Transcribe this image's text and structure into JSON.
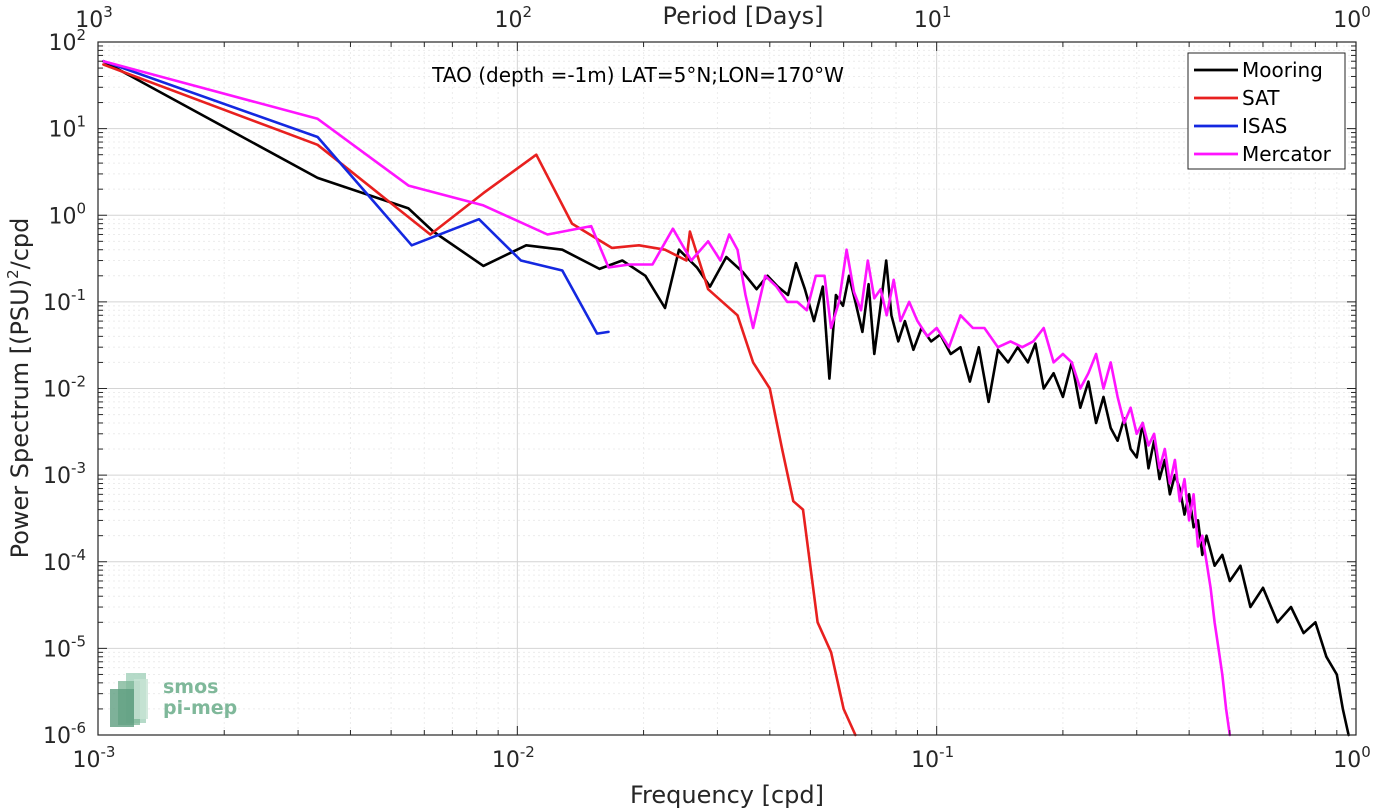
{
  "chart_data": {
    "type": "line",
    "title": "TAO (depth =-1m) LAT=5°N;LON=170°W",
    "xlabel": "Frequency [cpd]",
    "ylabel": "Power Spectrum [(PSU)",
    "ylabel_sup": "2",
    "ylabel_suffix": "/cpd",
    "top_xlabel": "Period [Days]",
    "xscale": "log",
    "yscale": "log",
    "xlim": [
      0.001,
      1
    ],
    "ylim": [
      1e-06,
      100
    ],
    "grid": true,
    "legend_position": "top-right",
    "x_tick_labels": [
      {
        "base": "10",
        "exp": "-3"
      },
      {
        "base": "10",
        "exp": "-2"
      },
      {
        "base": "10",
        "exp": "-1"
      },
      {
        "base": "10",
        "exp": "0"
      }
    ],
    "top_tick_labels": [
      {
        "base": "10",
        "exp": "3"
      },
      {
        "base": "10",
        "exp": "2"
      },
      {
        "base": "10",
        "exp": "1"
      },
      {
        "base": "10",
        "exp": "0"
      }
    ],
    "y_tick_labels": [
      {
        "base": "10",
        "exp": "-6"
      },
      {
        "base": "10",
        "exp": "-5"
      },
      {
        "base": "10",
        "exp": "-4"
      },
      {
        "base": "10",
        "exp": "-3"
      },
      {
        "base": "10",
        "exp": "-2"
      },
      {
        "base": "10",
        "exp": "-1"
      },
      {
        "base": "10",
        "exp": "0"
      },
      {
        "base": "10",
        "exp": "1"
      },
      {
        "base": "10",
        "exp": "2"
      }
    ],
    "series": [
      {
        "name": "Mooring",
        "color": "#000000",
        "points": [
          [
            0.00103,
            60
          ],
          [
            0.00334,
            2.7
          ],
          [
            0.0055,
            1.2
          ],
          [
            0.0063,
            0.65
          ],
          [
            0.0083,
            0.26
          ],
          [
            0.0105,
            0.45
          ],
          [
            0.0128,
            0.4
          ],
          [
            0.0157,
            0.24
          ],
          [
            0.0178,
            0.3
          ],
          [
            0.0202,
            0.2
          ],
          [
            0.0225,
            0.085
          ],
          [
            0.0243,
            0.4
          ],
          [
            0.0268,
            0.25
          ],
          [
            0.0288,
            0.15
          ],
          [
            0.0315,
            0.33
          ],
          [
            0.0345,
            0.22
          ],
          [
            0.0372,
            0.14
          ],
          [
            0.0395,
            0.2
          ],
          [
            0.0418,
            0.15
          ],
          [
            0.0442,
            0.12
          ],
          [
            0.0462,
            0.28
          ],
          [
            0.0485,
            0.14
          ],
          [
            0.051,
            0.06
          ],
          [
            0.0535,
            0.15
          ],
          [
            0.0555,
            0.013
          ],
          [
            0.0575,
            0.12
          ],
          [
            0.0598,
            0.09
          ],
          [
            0.0618,
            0.2
          ],
          [
            0.064,
            0.1
          ],
          [
            0.0665,
            0.045
          ],
          [
            0.0688,
            0.16
          ],
          [
            0.071,
            0.025
          ],
          [
            0.0735,
            0.09
          ],
          [
            0.0758,
            0.3
          ],
          [
            0.078,
            0.07
          ],
          [
            0.081,
            0.035
          ],
          [
            0.084,
            0.06
          ],
          [
            0.088,
            0.028
          ],
          [
            0.092,
            0.05
          ],
          [
            0.097,
            0.035
          ],
          [
            0.102,
            0.042
          ],
          [
            0.108,
            0.025
          ],
          [
            0.114,
            0.03
          ],
          [
            0.12,
            0.012
          ],
          [
            0.126,
            0.03
          ],
          [
            0.133,
            0.007
          ],
          [
            0.14,
            0.028
          ],
          [
            0.148,
            0.02
          ],
          [
            0.156,
            0.03
          ],
          [
            0.165,
            0.02
          ],
          [
            0.172,
            0.033
          ],
          [
            0.18,
            0.01
          ],
          [
            0.19,
            0.015
          ],
          [
            0.2,
            0.008
          ],
          [
            0.21,
            0.02
          ],
          [
            0.22,
            0.006
          ],
          [
            0.23,
            0.012
          ],
          [
            0.24,
            0.004
          ],
          [
            0.25,
            0.008
          ],
          [
            0.26,
            0.0035
          ],
          [
            0.27,
            0.0025
          ],
          [
            0.28,
            0.0045
          ],
          [
            0.29,
            0.002
          ],
          [
            0.3,
            0.0016
          ],
          [
            0.31,
            0.004
          ],
          [
            0.32,
            0.0012
          ],
          [
            0.33,
            0.0025
          ],
          [
            0.34,
            0.0009
          ],
          [
            0.35,
            0.0015
          ],
          [
            0.36,
            0.0006
          ],
          [
            0.37,
            0.001
          ],
          [
            0.38,
            0.0007
          ],
          [
            0.39,
            0.00035
          ],
          [
            0.4,
            0.0006
          ],
          [
            0.41,
            0.00025
          ],
          [
            0.42,
            0.0003
          ],
          [
            0.43,
            0.00012
          ],
          [
            0.44,
            0.0002
          ],
          [
            0.46,
            9e-05
          ],
          [
            0.48,
            0.00012
          ],
          [
            0.5,
            6e-05
          ],
          [
            0.53,
            9e-05
          ],
          [
            0.56,
            3e-05
          ],
          [
            0.6,
            5e-05
          ],
          [
            0.65,
            2e-05
          ],
          [
            0.7,
            3e-05
          ],
          [
            0.75,
            1.5e-05
          ],
          [
            0.8,
            2e-05
          ],
          [
            0.85,
            8e-06
          ],
          [
            0.9,
            5e-06
          ],
          [
            0.93,
            2e-06
          ],
          [
            0.96,
            1e-06
          ]
        ]
      },
      {
        "name": "SAT",
        "color": "#e8201f",
        "points": [
          [
            0.00103,
            55
          ],
          [
            0.00334,
            6.5
          ],
          [
            0.0062,
            0.6
          ],
          [
            0.0083,
            1.8
          ],
          [
            0.0111,
            5.0
          ],
          [
            0.0135,
            0.8
          ],
          [
            0.0168,
            0.42
          ],
          [
            0.0195,
            0.45
          ],
          [
            0.0225,
            0.4
          ],
          [
            0.0253,
            0.3
          ],
          [
            0.0258,
            0.65
          ],
          [
            0.0285,
            0.14
          ],
          [
            0.0335,
            0.07
          ],
          [
            0.0365,
            0.02
          ],
          [
            0.04,
            0.01
          ],
          [
            0.0428,
            0.002
          ],
          [
            0.0455,
            0.0005
          ],
          [
            0.048,
            0.0004
          ],
          [
            0.052,
            2e-05
          ],
          [
            0.056,
            9e-06
          ],
          [
            0.06,
            2e-06
          ],
          [
            0.064,
            1e-06
          ]
        ]
      },
      {
        "name": "ISAS",
        "color": "#1428e0",
        "points": [
          [
            0.00103,
            60
          ],
          [
            0.00334,
            8.0
          ],
          [
            0.0056,
            0.45
          ],
          [
            0.0081,
            0.9
          ],
          [
            0.0102,
            0.3
          ],
          [
            0.0128,
            0.23
          ],
          [
            0.0155,
            0.043
          ],
          [
            0.0165,
            0.045
          ]
        ]
      },
      {
        "name": "Mercator",
        "color": "#ff14ff",
        "points": [
          [
            0.00103,
            60
          ],
          [
            0.00334,
            13
          ],
          [
            0.0055,
            2.2
          ],
          [
            0.0083,
            1.3
          ],
          [
            0.0118,
            0.6
          ],
          [
            0.015,
            0.75
          ],
          [
            0.0165,
            0.25
          ],
          [
            0.0185,
            0.27
          ],
          [
            0.021,
            0.27
          ],
          [
            0.0235,
            0.7
          ],
          [
            0.026,
            0.3
          ],
          [
            0.0285,
            0.5
          ],
          [
            0.0305,
            0.3
          ],
          [
            0.032,
            0.6
          ],
          [
            0.0335,
            0.4
          ],
          [
            0.035,
            0.12
          ],
          [
            0.0365,
            0.05
          ],
          [
            0.039,
            0.2
          ],
          [
            0.0415,
            0.15
          ],
          [
            0.044,
            0.1
          ],
          [
            0.0465,
            0.1
          ],
          [
            0.049,
            0.08
          ],
          [
            0.0515,
            0.2
          ],
          [
            0.054,
            0.2
          ],
          [
            0.056,
            0.05
          ],
          [
            0.0585,
            0.1
          ],
          [
            0.061,
            0.4
          ],
          [
            0.0635,
            0.13
          ],
          [
            0.066,
            0.08
          ],
          [
            0.0685,
            0.3
          ],
          [
            0.071,
            0.11
          ],
          [
            0.0735,
            0.14
          ],
          [
            0.076,
            0.07
          ],
          [
            0.079,
            0.18
          ],
          [
            0.082,
            0.06
          ],
          [
            0.086,
            0.1
          ],
          [
            0.09,
            0.06
          ],
          [
            0.095,
            0.04
          ],
          [
            0.1,
            0.05
          ],
          [
            0.107,
            0.03
          ],
          [
            0.114,
            0.07
          ],
          [
            0.122,
            0.05
          ],
          [
            0.13,
            0.05
          ],
          [
            0.14,
            0.03
          ],
          [
            0.15,
            0.035
          ],
          [
            0.16,
            0.03
          ],
          [
            0.17,
            0.035
          ],
          [
            0.18,
            0.05
          ],
          [
            0.19,
            0.02
          ],
          [
            0.2,
            0.025
          ],
          [
            0.21,
            0.02
          ],
          [
            0.22,
            0.01
          ],
          [
            0.23,
            0.015
          ],
          [
            0.24,
            0.025
          ],
          [
            0.25,
            0.01
          ],
          [
            0.26,
            0.02
          ],
          [
            0.27,
            0.008
          ],
          [
            0.28,
            0.004
          ],
          [
            0.29,
            0.006
          ],
          [
            0.3,
            0.003
          ],
          [
            0.31,
            0.004
          ],
          [
            0.32,
            0.0022
          ],
          [
            0.33,
            0.003
          ],
          [
            0.34,
            0.0012
          ],
          [
            0.35,
            0.002
          ],
          [
            0.36,
            0.0008
          ],
          [
            0.37,
            0.0015
          ],
          [
            0.38,
            0.0005
          ],
          [
            0.39,
            0.0009
          ],
          [
            0.4,
            0.0003
          ],
          [
            0.41,
            0.0006
          ],
          [
            0.42,
            0.00015
          ],
          [
            0.43,
            0.0002
          ],
          [
            0.44,
            0.0001
          ],
          [
            0.45,
            5e-05
          ],
          [
            0.46,
            2e-05
          ],
          [
            0.47,
            1e-05
          ],
          [
            0.48,
            5e-06
          ],
          [
            0.49,
            2e-06
          ],
          [
            0.5,
            1e-06
          ]
        ]
      }
    ]
  },
  "logo": {
    "line1": "smos",
    "line2": "pi-mep"
  }
}
